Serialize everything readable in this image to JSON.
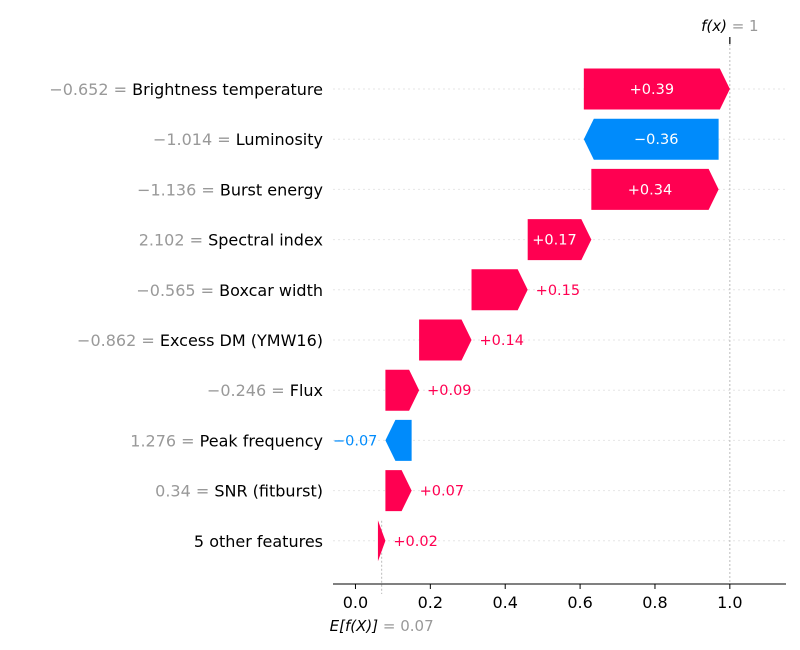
{
  "chart_data": {
    "type": "waterfall",
    "base_value": 0.07,
    "base_value_text": "0.07",
    "base_label": "E[f(X)]",
    "output_value": 1,
    "output_value_text": "1",
    "output_label": "f(x)",
    "xlim": [
      -0.06,
      1.15
    ],
    "xticks": [
      0.0,
      0.2,
      0.4,
      0.6,
      0.8,
      1.0
    ],
    "xtick_labels": [
      "0.0",
      "0.2",
      "0.4",
      "0.6",
      "0.8",
      "1.0"
    ],
    "colors": {
      "positive": "#ff0051",
      "negative": "#008bfb",
      "muted": "#999999"
    },
    "features": [
      {
        "value": "−0.652",
        "name": "Brightness temperature",
        "contribution": 0.39,
        "label": "+0.39"
      },
      {
        "value": "−1.014",
        "name": "Luminosity",
        "contribution": -0.36,
        "label": "−0.36"
      },
      {
        "value": "−1.136",
        "name": "Burst energy",
        "contribution": 0.34,
        "label": "+0.34"
      },
      {
        "value": "2.102",
        "name": "Spectral index",
        "contribution": 0.17,
        "label": "+0.17"
      },
      {
        "value": "−0.565",
        "name": "Boxcar width",
        "contribution": 0.15,
        "label": "+0.15"
      },
      {
        "value": "−0.862",
        "name": "Excess DM (YMW16)",
        "contribution": 0.14,
        "label": "+0.14"
      },
      {
        "value": "−0.246",
        "name": "Flux",
        "contribution": 0.09,
        "label": "+0.09"
      },
      {
        "value": "1.276",
        "name": "Peak frequency",
        "contribution": -0.07,
        "label": "−0.07"
      },
      {
        "value": "0.34",
        "name": "SNR (fitburst)",
        "contribution": 0.07,
        "label": "+0.07"
      },
      {
        "value": "",
        "name": "5 other features",
        "contribution": 0.02,
        "label": "+0.02"
      }
    ]
  }
}
